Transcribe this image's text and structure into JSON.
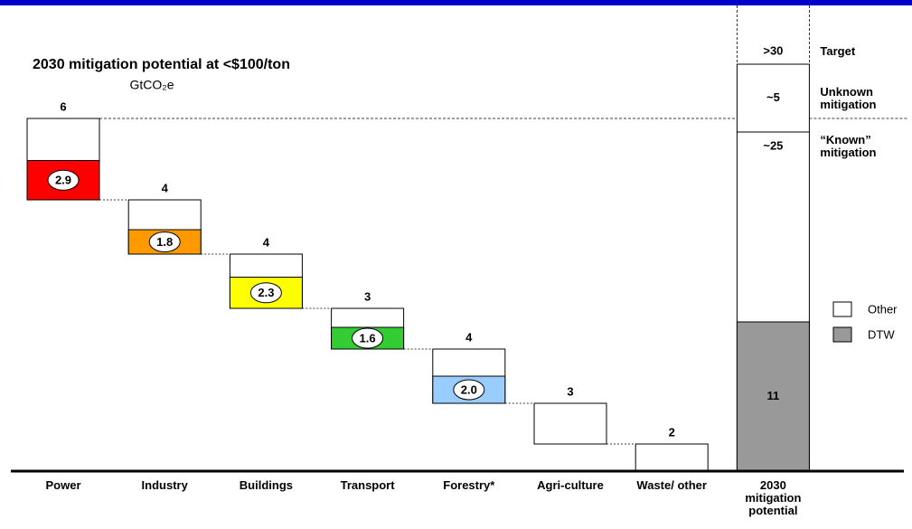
{
  "chart_data": {
    "type": "waterfall",
    "title": "2030 mitigation potential at <$100/ton",
    "subtitle": "GtCO₂e",
    "categories": [
      "Power",
      "Industry",
      "Buildings",
      "Transport",
      "Forestry*",
      "Agri-culture",
      "Waste/ other"
    ],
    "totals": [
      6,
      4,
      4,
      3,
      4,
      3,
      2
    ],
    "dtw": {
      "values": [
        2.9,
        1.8,
        2.3,
        1.6,
        2.0,
        null,
        null
      ],
      "value_labels": [
        "2.9",
        "1.8",
        "2.3",
        "1.6",
        "2.0",
        null,
        null
      ],
      "colors": [
        "#ff0000",
        "#ff9900",
        "#ffff00",
        "#33cc33",
        "#99ccff",
        null,
        null
      ]
    },
    "total_column": {
      "label": "2030 mitigation potential",
      "dtw": 11,
      "dtw_color": "#999999",
      "known": {
        "value": 25,
        "label": "~25",
        "name": "“Known” mitigation"
      },
      "unknown": {
        "value": 5,
        "label": "~5",
        "name": "Unknown mitigation"
      },
      "target": {
        "value": 30,
        "label": ">30",
        "name": "Target"
      }
    },
    "legend": [
      {
        "name": "Other",
        "color": "#ffffff"
      },
      {
        "name": "DTW",
        "color": "#999999"
      }
    ],
    "ylim": [
      0,
      31
    ]
  }
}
